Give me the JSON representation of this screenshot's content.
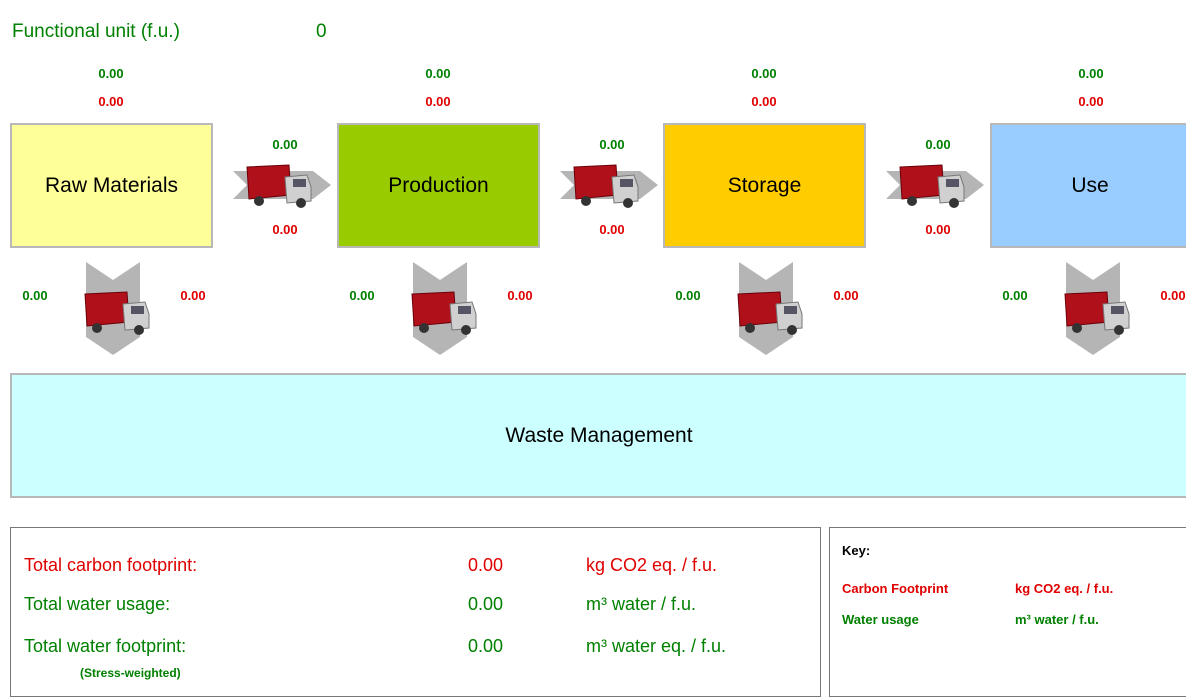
{
  "header": {
    "label": "Functional unit (f.u.)",
    "value": "0"
  },
  "stages": [
    {
      "name": "Raw Materials",
      "water": "0.00",
      "carbon": "0.00",
      "waste_transport": {
        "water": "0.00",
        "carbon": "0.00"
      }
    },
    {
      "name": "Production",
      "water": "0.00",
      "carbon": "0.00",
      "waste_transport": {
        "water": "0.00",
        "carbon": "0.00"
      }
    },
    {
      "name": "Storage",
      "water": "0.00",
      "carbon": "0.00",
      "waste_transport": {
        "water": "0.00",
        "carbon": "0.00"
      }
    },
    {
      "name": "Use",
      "water": "0.00",
      "carbon": "0.00",
      "waste_transport": {
        "water": "0.00",
        "carbon": "0.00"
      }
    }
  ],
  "transport": [
    {
      "water": "0.00",
      "carbon": "0.00"
    },
    {
      "water": "0.00",
      "carbon": "0.00"
    },
    {
      "water": "0.00",
      "carbon": "0.00"
    }
  ],
  "waste": {
    "name": "Waste Management"
  },
  "totals": {
    "rows": [
      {
        "label": "Total carbon footprint:",
        "value": "0.00",
        "unit": "kg CO2 eq. / f.u."
      },
      {
        "label": "Total water usage:",
        "value": "0.00",
        "unit": "m³ water / f.u."
      },
      {
        "label": "Total water footprint:",
        "value": "0.00",
        "unit": "m³ water eq. / f.u."
      }
    ],
    "note": "(Stress-weighted)"
  },
  "key": {
    "title": "Key:",
    "rows": [
      {
        "label": "Carbon Footprint",
        "unit": "kg CO2 eq. / f.u."
      },
      {
        "label": "Water usage",
        "unit": "m³ water / f.u."
      }
    ]
  }
}
